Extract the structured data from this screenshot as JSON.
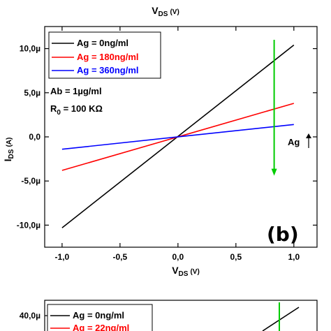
{
  "chart_data": [
    {
      "type": "line",
      "panel_label": "(b)",
      "xlabel_main": "V",
      "xlabel_sub": "DS",
      "xlabel_unit": "(V)",
      "ylabel_main": "I",
      "ylabel_sub": "DS",
      "ylabel_unit": "(A)",
      "xlim": [
        -1.15,
        1.2
      ],
      "ylim": [
        -1.25e-05,
        1.25e-05
      ],
      "x_ticks": [
        -1.0,
        -0.5,
        0.0,
        0.5,
        1.0
      ],
      "x_tick_labels": [
        "-1,0",
        "-0,5",
        "0,0",
        "0,5",
        "1,0"
      ],
      "y_ticks": [
        1e-05,
        5e-06,
        0,
        -5e-06,
        -1e-05
      ],
      "y_tick_labels": [
        "10,0µ",
        "5,0µ",
        "0,0",
        "-5,0µ",
        "-10,0µ"
      ],
      "legend_position": "top-left",
      "series": [
        {
          "name": "Ag = 0ng/ml",
          "color": "#000000",
          "x": [
            -1.0,
            1.0
          ],
          "y": [
            -1.03e-05,
            1.04e-05
          ]
        },
        {
          "name": "Ag = 180ng/ml",
          "color": "#ff0000",
          "x": [
            -1.0,
            1.0
          ],
          "y": [
            -3.8e-06,
            3.8e-06
          ]
        },
        {
          "name": "Ag = 360ng/ml",
          "color": "#0000ff",
          "x": [
            -1.0,
            1.0
          ],
          "y": [
            -1.4e-06,
            1.4e-06
          ]
        }
      ],
      "annotations": {
        "ab": "Ab = 1µg/ml",
        "r0_main": "R",
        "r0_sub": "0",
        "r0_value": " = 100 KΩ",
        "ag_label": "Ag",
        "ag_arrow_x": 0.83,
        "ag_arrow_y_start": 1.1e-05,
        "ag_arrow_y_end": -4.4e-06,
        "arrow_color": "#00cc00"
      }
    },
    {
      "type": "line",
      "partial": true,
      "y_tick_labels": [
        "40,0µ"
      ],
      "legend": [
        {
          "name": "Ag = 0ng/ml",
          "color": "#000000"
        },
        {
          "name": "Ag = 22ng/ml",
          "color": "#ff0000"
        }
      ]
    }
  ],
  "top_label_main": "V",
  "top_label_sub": "DS",
  "top_label_unit": "(V)",
  "arrow_color": "#00cc00"
}
